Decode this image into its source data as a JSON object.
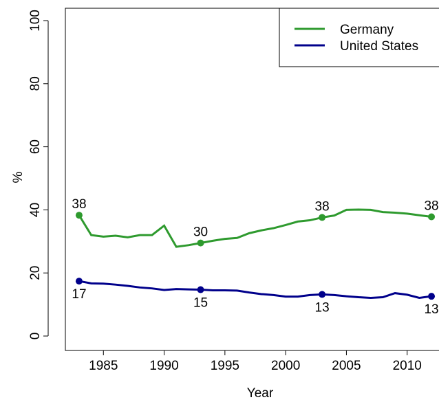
{
  "chart_data": {
    "type": "line",
    "x_label": "Year",
    "y_label": "%",
    "x": [
      1983,
      1984,
      1985,
      1986,
      1987,
      1988,
      1989,
      1990,
      1991,
      1992,
      1993,
      1994,
      1995,
      1996,
      1997,
      1998,
      1999,
      2000,
      2001,
      2002,
      2003,
      2004,
      2005,
      2006,
      2007,
      2008,
      2009,
      2010,
      2011,
      2012
    ],
    "series": [
      {
        "name": "Germany",
        "color": "#2e9a2e",
        "values": [
          38.3,
          32,
          31.5,
          31.8,
          31.3,
          32,
          32,
          35,
          28.3,
          28.8,
          29.5,
          30.2,
          30.8,
          31.1,
          32.6,
          33.5,
          34.2,
          35.2,
          36.3,
          36.7,
          37.6,
          38.2,
          40,
          40.1,
          40,
          39.3,
          39.1,
          38.8,
          38.3,
          37.8
        ],
        "value_labels": [
          "38",
          null,
          null,
          null,
          null,
          null,
          null,
          null,
          null,
          null,
          "30",
          null,
          null,
          null,
          null,
          null,
          null,
          null,
          null,
          null,
          "38",
          null,
          null,
          null,
          null,
          null,
          null,
          null,
          null,
          "38"
        ]
      },
      {
        "name": "United States",
        "color": "#00008b",
        "values": [
          17.4,
          16.7,
          16.6,
          16.3,
          15.9,
          15.4,
          15.1,
          14.6,
          14.9,
          14.8,
          14.7,
          14.5,
          14.5,
          14.4,
          13.8,
          13.3,
          13,
          12.5,
          12.5,
          13,
          13.2,
          13,
          12.6,
          12.3,
          12.1,
          12.3,
          13.6,
          13.1,
          12.1,
          12.6
        ],
        "value_labels": [
          "17",
          null,
          null,
          null,
          null,
          null,
          null,
          null,
          null,
          null,
          "15",
          null,
          null,
          null,
          null,
          null,
          null,
          null,
          null,
          null,
          "13",
          null,
          null,
          null,
          null,
          null,
          null,
          null,
          null,
          "13"
        ]
      }
    ],
    "xlim": [
      1981.87,
      2013.3
    ],
    "xticks": [
      1985,
      1990,
      1995,
      2000,
      2005,
      2010
    ],
    "ylim": [
      0,
      100
    ],
    "yticks": [
      0,
      20,
      40,
      60,
      80,
      100
    ],
    "legend": "top-right"
  }
}
